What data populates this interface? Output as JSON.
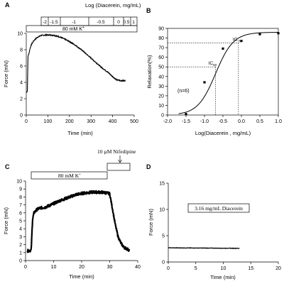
{
  "panels": {
    "A": "A",
    "B": "B",
    "C": "C",
    "D": "D"
  },
  "chart_data": [
    {
      "id": "A",
      "type": "line",
      "xlabel": "Time (min)",
      "ylabel": "Force (mN)",
      "xlim": [
        0,
        500
      ],
      "ylim": [
        0,
        10
      ],
      "xticks": [
        0,
        100,
        200,
        300,
        400,
        500
      ],
      "yticks": [
        0,
        2,
        4,
        6,
        8,
        10
      ],
      "series": [
        {
          "x": [
            0,
            5,
            8,
            12,
            18,
            25,
            35,
            50,
            70,
            90,
            110,
            130,
            150,
            170,
            200,
            230,
            260,
            290,
            320,
            350,
            380,
            400,
            420,
            440,
            460
          ],
          "values": [
            2.8,
            2.9,
            7.2,
            7.5,
            8.2,
            8.7,
            9.1,
            9.5,
            9.75,
            9.8,
            9.8,
            9.75,
            9.6,
            9.4,
            9.0,
            8.5,
            7.9,
            7.2,
            6.5,
            5.8,
            5.2,
            4.7,
            4.3,
            4.2,
            4.2
          ]
        }
      ],
      "top_label": "Log (Diacerein, mg/mL)",
      "dose_labels": [
        "-2",
        "-1.5",
        "-1",
        "-0.5",
        "0",
        "0.5",
        "1"
      ],
      "dose_x": [
        50,
        78,
        158,
        255,
        310,
        355,
        385
      ],
      "kplus_label": "80 mM K",
      "kplus_sup": "+"
    },
    {
      "id": "B",
      "type": "scatter",
      "xlabel": "Log(Diacerein , mg/mL)",
      "ylabel": "Relaxation(%)",
      "xlim": [
        -2.0,
        1.0
      ],
      "ylim": [
        0,
        90
      ],
      "xticks": [
        "-2.0",
        "-1.5",
        "-1.0",
        "-0.5",
        "0.0",
        "0.5",
        "1.0"
      ],
      "yticks": [
        0,
        10,
        20,
        30,
        40,
        50,
        60,
        70,
        80,
        90
      ],
      "series": [
        {
          "x": [
            -1.5,
            -1.0,
            -0.5,
            0.0,
            0.5,
            1.0
          ],
          "values": [
            1,
            34,
            69,
            77,
            84,
            85
          ]
        }
      ],
      "fit": {
        "ec50": -0.7,
        "top": 86,
        "bottom": 0,
        "hill": 1.2
      },
      "annotations": {
        "n": "(n=6)",
        "ic50": "IC",
        "ic50_sub": "50",
        "ic75": "IC",
        "ic75_sub": "75"
      },
      "ic50_ref": {
        "x": -0.7,
        "y": 50
      },
      "ic75_ref": {
        "x": -0.08,
        "y": 75
      }
    },
    {
      "id": "C",
      "type": "line",
      "xlabel": "Time (min)",
      "ylabel": "Force (mN)",
      "xlim": [
        0,
        40
      ],
      "ylim": [
        0,
        10
      ],
      "xticks": [
        0,
        10,
        20,
        30,
        40
      ],
      "yticks": [
        0,
        1,
        2,
        3,
        4,
        5,
        6,
        7,
        8,
        9,
        10
      ],
      "series": [
        {
          "x": [
            0.5,
            2,
            2.5,
            3,
            4,
            5,
            7,
            9,
            12,
            15,
            18,
            21,
            24,
            27,
            29,
            30,
            31,
            32,
            33,
            34,
            35,
            36,
            37
          ],
          "values": [
            1.2,
            1.3,
            5.2,
            6.0,
            6.4,
            6.6,
            6.7,
            7.0,
            7.5,
            7.9,
            8.3,
            8.5,
            8.6,
            8.6,
            8.5,
            8.4,
            6.5,
            4.5,
            3.0,
            2.2,
            1.7,
            1.5,
            1.3
          ]
        }
      ],
      "kplus_label": "80 mM K",
      "kplus_sup": "+",
      "kplus_range": [
        2,
        29
      ],
      "nif_label": "10 µM Nifedipine",
      "nif_range": [
        29,
        37
      ]
    },
    {
      "id": "D",
      "type": "line",
      "xlabel": "Time (min)",
      "ylabel": "Force (mN)",
      "xlim": [
        0,
        20
      ],
      "ylim": [
        0,
        15
      ],
      "xticks": [
        0,
        5,
        10,
        15,
        20
      ],
      "yticks": [
        0,
        5,
        10,
        15
      ],
      "series": [
        {
          "x": [
            0,
            13
          ],
          "values": [
            2.7,
            2.6
          ]
        }
      ],
      "box_label": "3.16 mg/mL Diacerein"
    }
  ]
}
